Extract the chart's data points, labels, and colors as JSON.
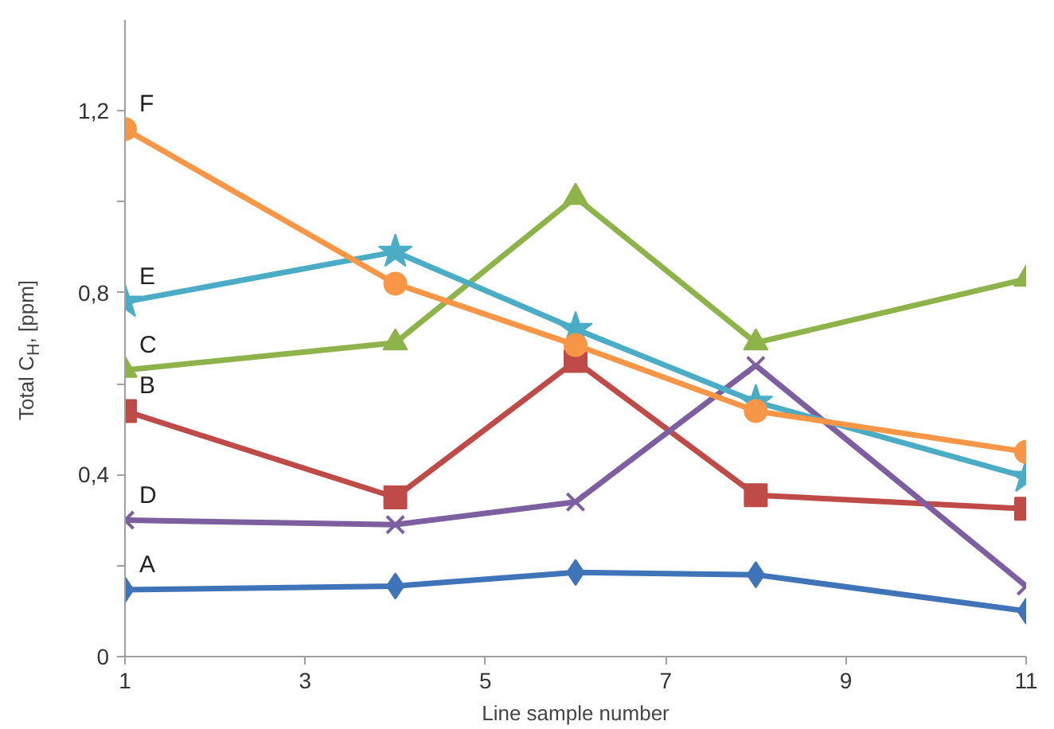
{
  "chart_data": {
    "type": "line",
    "xlabel": "Line sample number",
    "ylabel": "Total C$_{H}$, [ppm]",
    "xlim": [
      1,
      11
    ],
    "xticks": [
      1,
      3,
      5,
      7,
      9,
      11
    ],
    "ylim": [
      0,
      1.4
    ],
    "yticks": [
      0,
      {
        "value": 0.2,
        "label": null
      },
      {
        "value": 0.4,
        "label": "0,4"
      },
      {
        "value": 0.6,
        "label": null
      },
      {
        "value": 0.8,
        "label": "0,8"
      },
      {
        "value": 1.0,
        "label": null
      },
      {
        "value": 1.2,
        "label": "1,2"
      }
    ],
    "grid": false,
    "legend": false,
    "series": [
      {
        "name": "A",
        "color": "#3f74b8",
        "marker": "diamond",
        "x": [
          1,
          4,
          6,
          8,
          11
        ],
        "values": [
          0.147,
          0.155,
          0.185,
          0.18,
          0.1
        ]
      },
      {
        "name": "B",
        "color": "#be4b48",
        "marker": "square",
        "x": [
          1,
          4,
          6,
          8,
          11
        ],
        "values": [
          0.54,
          0.35,
          0.65,
          0.355,
          0.325
        ]
      },
      {
        "name": "C",
        "color": "#8db34a",
        "marker": "triangle",
        "x": [
          1,
          4,
          6,
          8,
          11
        ],
        "values": [
          0.63,
          0.69,
          1.01,
          0.69,
          0.83
        ]
      },
      {
        "name": "D",
        "color": "#7d5fa0",
        "marker": "cross",
        "x": [
          1,
          4,
          6,
          8,
          11
        ],
        "values": [
          0.3,
          0.29,
          0.34,
          0.64,
          0.155
        ]
      },
      {
        "name": "E",
        "color": "#4bacc6",
        "marker": "star",
        "x": [
          1,
          4,
          6,
          8,
          11
        ],
        "values": [
          0.78,
          0.89,
          0.72,
          0.56,
          0.395
        ]
      },
      {
        "name": "F",
        "color": "#f79646",
        "marker": "circle",
        "x": [
          1,
          4,
          6,
          8,
          11
        ],
        "values": [
          1.16,
          0.82,
          0.685,
          0.54,
          0.45
        ]
      }
    ]
  }
}
